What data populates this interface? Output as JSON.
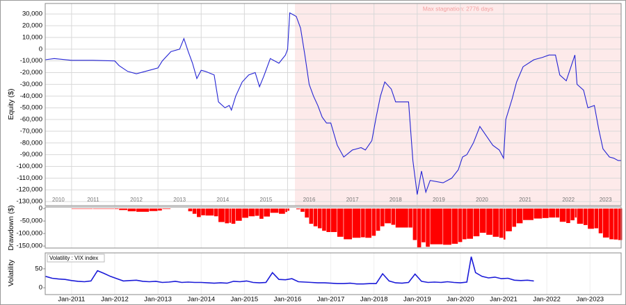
{
  "chart_data": [
    {
      "type": "line",
      "ylabel": "Equity ($)",
      "color": "#2424d4",
      "grid": true,
      "xlim": [
        2010.39,
        2023.72
      ],
      "ylim": [
        -133500,
        39000
      ],
      "yticks": [
        {
          "value": -130000,
          "label": "-130,000"
        },
        {
          "value": -120000,
          "label": "-120,000"
        },
        {
          "value": -110000,
          "label": "-110,000"
        },
        {
          "value": -100000,
          "label": "-100,000"
        },
        {
          "value": -90000,
          "label": "-90,000"
        },
        {
          "value": -80000,
          "label": "-80,000"
        },
        {
          "value": -70000,
          "label": "-70,000"
        },
        {
          "value": -60000,
          "label": "-60,000"
        },
        {
          "value": -50000,
          "label": "-50,000"
        },
        {
          "value": -40000,
          "label": "-40,000"
        },
        {
          "value": -30000,
          "label": "-30,000"
        },
        {
          "value": -20000,
          "label": "-20,000"
        },
        {
          "value": -10000,
          "label": "-10,000"
        },
        0,
        {
          "value": 10000,
          "label": "10,000"
        },
        {
          "value": 20000,
          "label": "20,000"
        },
        {
          "value": 30000,
          "label": "30,000"
        }
      ],
      "stagnation": {
        "label": "Max stagnation: 2776 days",
        "start": 2016.17,
        "end": 2023.72,
        "color": "#fdeaea"
      },
      "year_labels": [
        "2010",
        "2011",
        "2012",
        "2013",
        "2014",
        "2015",
        "2016",
        "2017",
        "2018",
        "2019",
        "2020",
        "2021",
        "2022",
        "2023"
      ],
      "x": [
        2010.39,
        2010.6,
        2011.0,
        2011.5,
        2012.0,
        2012.1,
        2012.3,
        2012.5,
        2012.8,
        2013.0,
        2013.1,
        2013.3,
        2013.5,
        2013.6,
        2013.7,
        2013.8,
        2013.9,
        2014.0,
        2014.1,
        2014.3,
        2014.4,
        2014.55,
        2014.65,
        2014.7,
        2014.8,
        2014.95,
        2015.1,
        2015.25,
        2015.35,
        2015.45,
        2015.6,
        2015.8,
        2015.95,
        2016.0,
        2016.05,
        2016.2,
        2016.3,
        2016.4,
        2016.5,
        2016.6,
        2016.7,
        2016.8,
        2016.9,
        2017.0,
        2017.15,
        2017.3,
        2017.5,
        2017.7,
        2017.8,
        2017.95,
        2018.05,
        2018.15,
        2018.25,
        2018.4,
        2018.5,
        2018.8,
        2018.9,
        2019.0,
        2019.1,
        2019.2,
        2019.3,
        2019.6,
        2019.8,
        2019.95,
        2020.05,
        2020.15,
        2020.3,
        2020.45,
        2020.6,
        2020.75,
        2020.9,
        2021.0,
        2021.05,
        2021.2,
        2021.3,
        2021.45,
        2021.7,
        2021.9,
        2022.05,
        2022.2,
        2022.3,
        2022.45,
        2022.55,
        2022.65,
        2022.7,
        2022.85,
        2022.95,
        2023.1,
        2023.2,
        2023.3,
        2023.45,
        2023.55,
        2023.65,
        2023.72
      ],
      "values": [
        -9000,
        -8000,
        -9500,
        -9500,
        -10000,
        -14000,
        -19000,
        -21000,
        -18000,
        -16000,
        -10000,
        -2000,
        0,
        9000,
        -2000,
        -12000,
        -25000,
        -18000,
        -19000,
        -22000,
        -45000,
        -50000,
        -48000,
        -52000,
        -40000,
        -28000,
        -22000,
        -20000,
        -32000,
        -23000,
        -8000,
        -12000,
        -5000,
        0,
        31000,
        28000,
        18000,
        -5000,
        -30000,
        -40000,
        -48000,
        -58000,
        -63000,
        -63000,
        -82000,
        -92000,
        -86000,
        -84000,
        -86000,
        -78000,
        -58000,
        -40000,
        -28000,
        -34000,
        -45000,
        -45000,
        -95000,
        -124000,
        -104000,
        -122000,
        -112000,
        -114000,
        -110000,
        -103000,
        -92000,
        -90000,
        -80000,
        -66000,
        -74000,
        -82000,
        -86000,
        -93000,
        -60000,
        -42000,
        -28000,
        -15000,
        -9000,
        -7000,
        -5000,
        -5000,
        -22000,
        -27000,
        -16000,
        -5000,
        -30000,
        -35000,
        -50000,
        -48000,
        -68000,
        -85000,
        -92000,
        -93000,
        -95000,
        -95000
      ]
    },
    {
      "type": "bar",
      "ylabel": "Drawdown ($)",
      "color": "#ff0000",
      "xlim": [
        2010.39,
        2023.72
      ],
      "ylim": [
        -158000,
        6000
      ],
      "yticks": [
        {
          "value": -150000,
          "label": "-150,000"
        },
        {
          "value": -100000,
          "label": "-100,000"
        },
        {
          "value": -50000,
          "label": "-50,000"
        },
        0
      ],
      "x": [
        2010.39,
        2010.6,
        2011.0,
        2011.5,
        2012.0,
        2012.1,
        2012.3,
        2012.5,
        2012.8,
        2013.0,
        2013.1,
        2013.3,
        2013.5,
        2013.6,
        2013.7,
        2013.8,
        2013.9,
        2014.0,
        2014.1,
        2014.3,
        2014.4,
        2014.55,
        2014.65,
        2014.7,
        2014.8,
        2014.95,
        2015.1,
        2015.25,
        2015.35,
        2015.45,
        2015.6,
        2015.8,
        2015.95,
        2016.0,
        2016.05,
        2016.2,
        2016.3,
        2016.4,
        2016.5,
        2016.6,
        2016.7,
        2016.8,
        2016.9,
        2017.0,
        2017.15,
        2017.3,
        2017.5,
        2017.7,
        2017.8,
        2017.95,
        2018.05,
        2018.15,
        2018.25,
        2018.4,
        2018.5,
        2018.8,
        2018.9,
        2019.0,
        2019.1,
        2019.2,
        2019.3,
        2019.6,
        2019.8,
        2019.95,
        2020.05,
        2020.15,
        2020.3,
        2020.45,
        2020.6,
        2020.75,
        2020.9,
        2021.0,
        2021.05,
        2021.2,
        2021.3,
        2021.45,
        2021.7,
        2021.9,
        2022.05,
        2022.2,
        2022.3,
        2022.45,
        2022.55,
        2022.65,
        2022.7,
        2022.85,
        2022.95,
        2023.1,
        2023.2,
        2023.3,
        2023.45,
        2023.55,
        2023.65,
        2023.72
      ],
      "values": [
        0,
        0,
        -1500,
        -1500,
        -2000,
        -6000,
        -11000,
        -13000,
        -10000,
        -8000,
        -2000,
        0,
        0,
        0,
        -11000,
        -21000,
        -34000,
        -27000,
        -28000,
        -31000,
        -54000,
        -59000,
        -57000,
        -61000,
        -49000,
        -37000,
        -31000,
        -29000,
        -41000,
        -32000,
        -17000,
        -21000,
        -14000,
        -9000,
        0,
        -3000,
        -13000,
        -36000,
        -61000,
        -71000,
        -79000,
        -89000,
        -94000,
        -94000,
        -113000,
        -123000,
        -117000,
        -115000,
        -117000,
        -109000,
        -89000,
        -71000,
        -59000,
        -65000,
        -76000,
        -76000,
        -126000,
        -155000,
        -135000,
        -153000,
        -143000,
        -145000,
        -141000,
        -134000,
        -123000,
        -121000,
        -111000,
        -97000,
        -105000,
        -113000,
        -117000,
        -124000,
        -91000,
        -73000,
        -59000,
        -46000,
        -40000,
        -38000,
        -36000,
        -36000,
        -53000,
        -58000,
        -47000,
        -36000,
        -61000,
        -66000,
        -81000,
        -79000,
        -99000,
        -116000,
        -123000,
        -124000,
        -126000,
        -126000
      ]
    },
    {
      "type": "line",
      "ylabel": "Volatility",
      "legend": "Volatility : VIX index",
      "color": "#1a1ad8",
      "xlim": [
        2010.39,
        2023.72
      ],
      "ylim": [
        -18,
        92
      ],
      "yticks": [
        0,
        50
      ],
      "xticks": [
        {
          "value": 2011,
          "label": "Jan-2011"
        },
        {
          "value": 2012,
          "label": "Jan-2012"
        },
        {
          "value": 2013,
          "label": "Jan-2013"
        },
        {
          "value": 2014,
          "label": "Jan-2014"
        },
        {
          "value": 2015,
          "label": "Jan-2015"
        },
        {
          "value": 2016,
          "label": "Jan-2016"
        },
        {
          "value": 2017,
          "label": "Jan-2017"
        },
        {
          "value": 2018,
          "label": "Jan-2018"
        },
        {
          "value": 2019,
          "label": "Jan-2019"
        },
        {
          "value": 2020,
          "label": "Jan-2020"
        },
        {
          "value": 2021,
          "label": "Jan-2021"
        },
        {
          "value": 2022,
          "label": "Jan-2022"
        },
        {
          "value": 2023,
          "label": "Jan-2023"
        }
      ],
      "x": [
        2010.4,
        2010.55,
        2010.7,
        2010.85,
        2011.0,
        2011.15,
        2011.3,
        2011.45,
        2011.6,
        2011.75,
        2011.9,
        2012.05,
        2012.2,
        2012.35,
        2012.5,
        2012.65,
        2012.8,
        2012.95,
        2013.1,
        2013.25,
        2013.4,
        2013.55,
        2013.7,
        2013.85,
        2014.0,
        2014.15,
        2014.3,
        2014.45,
        2014.6,
        2014.75,
        2014.9,
        2015.05,
        2015.2,
        2015.35,
        2015.5,
        2015.65,
        2015.8,
        2015.95,
        2016.1,
        2016.25,
        2016.4,
        2016.55,
        2016.7,
        2016.85,
        2017.0,
        2017.15,
        2017.3,
        2017.45,
        2017.6,
        2017.75,
        2017.9,
        2018.05,
        2018.2,
        2018.35,
        2018.5,
        2018.65,
        2018.8,
        2018.95,
        2019.1,
        2019.25,
        2019.4,
        2019.55,
        2019.7,
        2019.85,
        2020.0,
        2020.15,
        2020.25,
        2020.35,
        2020.5,
        2020.65,
        2020.8,
        2020.95,
        2021.1,
        2021.25,
        2021.4,
        2021.55,
        2021.7
      ],
      "values": [
        30,
        25,
        23,
        22,
        19,
        17,
        16,
        18,
        45,
        38,
        30,
        24,
        18,
        19,
        20,
        17,
        16,
        17,
        14,
        15,
        17,
        14,
        15,
        14,
        14,
        13,
        12,
        13,
        12,
        17,
        16,
        18,
        14,
        13,
        14,
        40,
        22,
        21,
        24,
        16,
        15,
        14,
        13,
        13,
        12,
        11,
        11,
        12,
        10,
        10,
        11,
        11,
        37,
        18,
        13,
        12,
        14,
        36,
        17,
        14,
        15,
        14,
        16,
        14,
        13,
        15,
        82,
        40,
        30,
        26,
        28,
        24,
        25,
        20,
        19,
        20,
        18
      ]
    }
  ]
}
